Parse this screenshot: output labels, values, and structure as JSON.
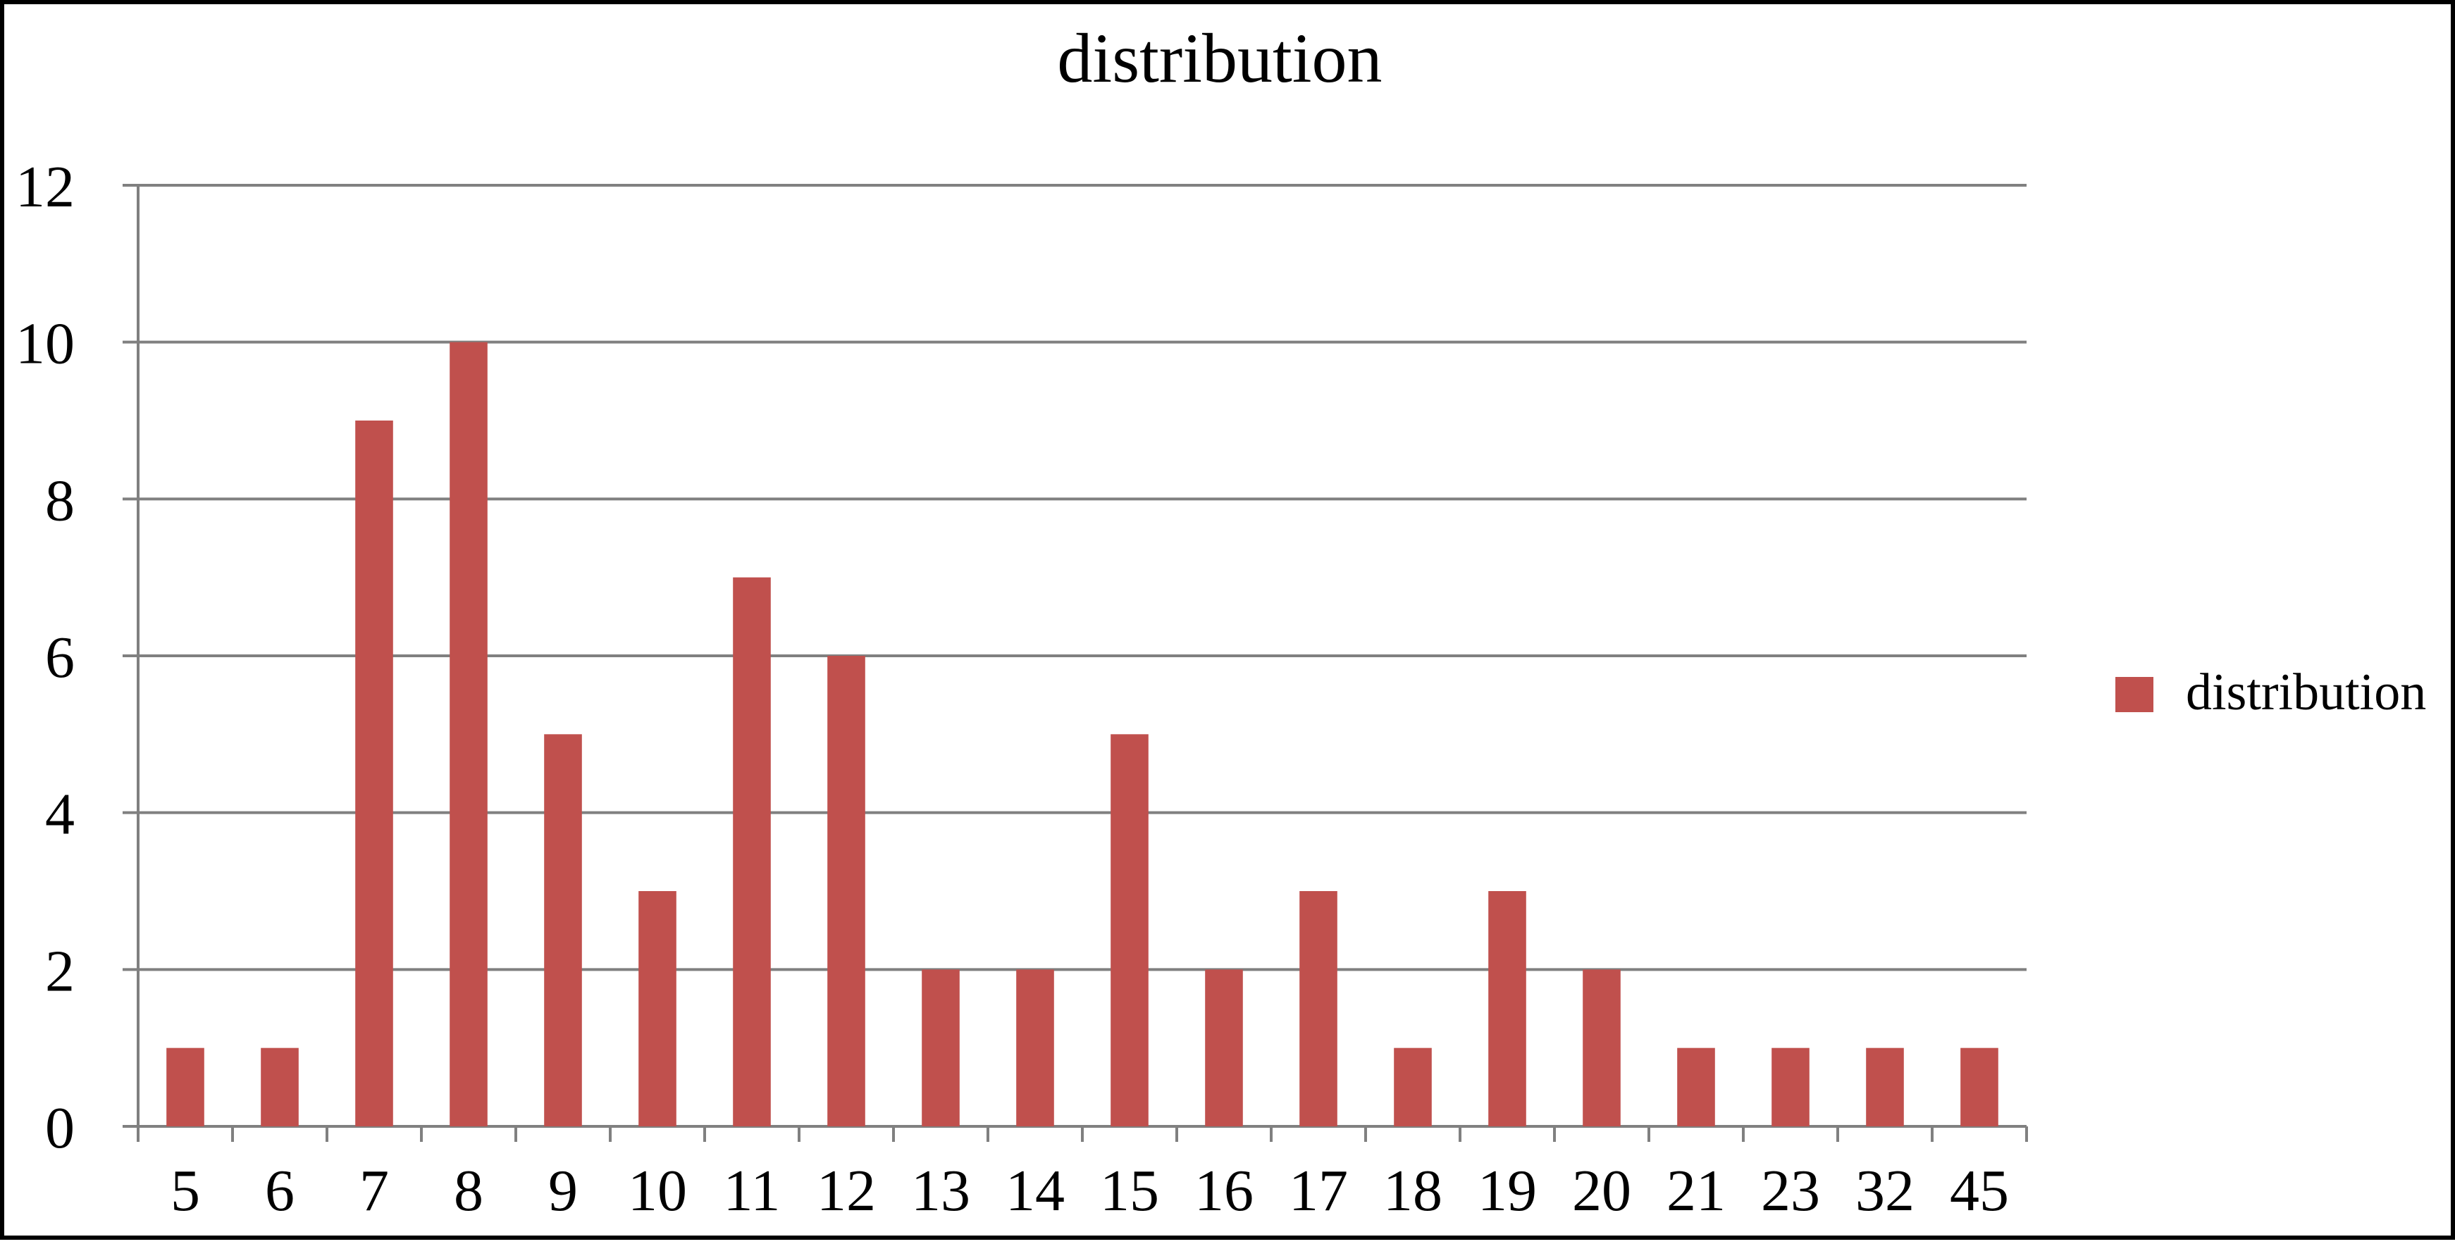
{
  "chart_data": {
    "type": "bar",
    "title": "distribution",
    "xlabel": "",
    "ylabel": "",
    "categories": [
      "5",
      "6",
      "7",
      "8",
      "9",
      "10",
      "11",
      "12",
      "13",
      "14",
      "15",
      "16",
      "17",
      "18",
      "19",
      "20",
      "21",
      "23",
      "32",
      "45"
    ],
    "series": [
      {
        "name": "distribution",
        "color": "#c0504d",
        "values": [
          1,
          1,
          9,
          10,
          5,
          3,
          7,
          6,
          2,
          2,
          5,
          2,
          3,
          1,
          3,
          2,
          1,
          1,
          1,
          1
        ]
      }
    ],
    "ylim": [
      0,
      12
    ],
    "yticks": [
      0,
      2,
      4,
      6,
      8,
      10,
      12
    ],
    "grid": true,
    "legend": "right",
    "gridline_color": "#808080",
    "axis_color": "#808080"
  }
}
